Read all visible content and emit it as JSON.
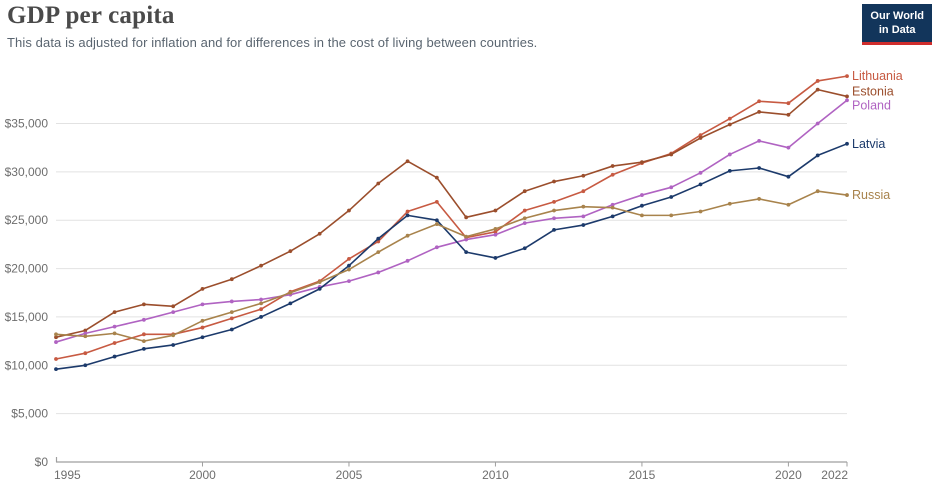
{
  "header": {
    "title": "GDP per capita",
    "subtitle": "This data is adjusted for inflation and for differences in the cost of living between countries."
  },
  "logo": {
    "line1": "Our World",
    "line2": "in Data"
  },
  "colors": {
    "axis": "#9f9f9f",
    "grid": "#e2e2e2",
    "tick_text": "#6e6e6e",
    "title_text": "#4a4a4a",
    "logo_bg": "#12355b",
    "logo_bar": "#cf2d2c"
  },
  "chart_data": {
    "type": "line",
    "title": "GDP per capita",
    "xlabel": "",
    "ylabel": "",
    "grid": "horizontal",
    "legend_position": "right-of-line-ends",
    "x": [
      1995,
      1996,
      1997,
      1998,
      1999,
      2000,
      2001,
      2002,
      2003,
      2004,
      2005,
      2006,
      2007,
      2008,
      2009,
      2010,
      2011,
      2012,
      2013,
      2014,
      2015,
      2016,
      2017,
      2018,
      2019,
      2020,
      2021,
      2022
    ],
    "x_ticks": [
      1995,
      2000,
      2005,
      2010,
      2015,
      2020,
      2022
    ],
    "y_ticks": [
      0,
      5000,
      10000,
      15000,
      20000,
      25000,
      30000,
      35000
    ],
    "y_tick_labels": [
      "$0",
      "$5,000",
      "$10,000",
      "$15,000",
      "$20,000",
      "$25,000",
      "$30,000",
      "$35,000"
    ],
    "ylim": [
      0,
      41500
    ],
    "series": [
      {
        "name": "Lithuania",
        "color": "#c75a42",
        "values": [
          10650,
          11250,
          12300,
          13200,
          13200,
          13900,
          14850,
          15800,
          17600,
          18700,
          21000,
          22800,
          25900,
          26900,
          23200,
          23800,
          26000,
          26900,
          28000,
          29700,
          30900,
          31900,
          33800,
          35500,
          37300,
          37100,
          39400,
          39900
        ]
      },
      {
        "name": "Estonia",
        "color": "#9b4e2c",
        "values": [
          12900,
          13600,
          15500,
          16300,
          16100,
          17900,
          18900,
          20300,
          21800,
          23600,
          26000,
          28800,
          31100,
          29400,
          25300,
          26000,
          28000,
          29000,
          29600,
          30600,
          31000,
          31800,
          33500,
          34900,
          36200,
          35900,
          38500,
          37800
        ]
      },
      {
        "name": "Poland",
        "color": "#b063c2",
        "values": [
          12400,
          13300,
          14000,
          14700,
          15500,
          16300,
          16600,
          16800,
          17300,
          18100,
          18700,
          19600,
          20800,
          22200,
          23000,
          23500,
          24700,
          25200,
          25400,
          26600,
          27600,
          28400,
          29900,
          31800,
          33200,
          32500,
          35000,
          37400
        ]
      },
      {
        "name": "Latvia",
        "color": "#1c3a6b",
        "values": [
          9600,
          10000,
          10900,
          11700,
          12100,
          12900,
          13700,
          15000,
          16400,
          17900,
          20300,
          23100,
          25500,
          25000,
          21700,
          21100,
          22100,
          24000,
          24500,
          25400,
          26500,
          27400,
          28700,
          30100,
          30400,
          29500,
          31700,
          32900
        ]
      },
      {
        "name": "Russia",
        "color": "#a8834c",
        "values": [
          13200,
          13000,
          13300,
          12500,
          13100,
          14600,
          15500,
          16400,
          17500,
          18600,
          19900,
          21700,
          23400,
          24600,
          23300,
          24100,
          25200,
          26000,
          26400,
          26300,
          25500,
          25500,
          25900,
          26700,
          27200,
          26600,
          28000,
          27600
        ]
      }
    ]
  }
}
